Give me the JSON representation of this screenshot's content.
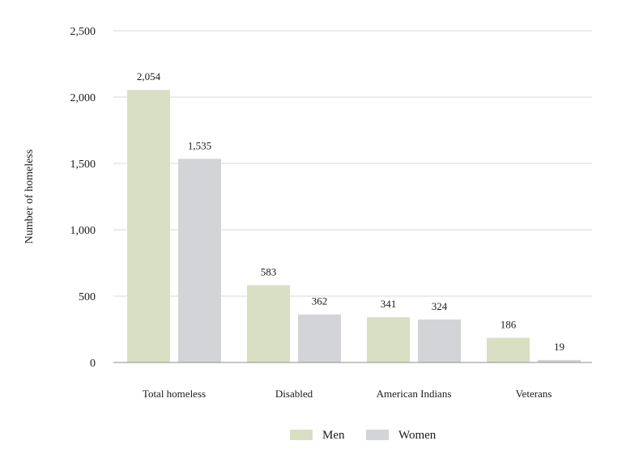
{
  "chart_data": {
    "type": "bar",
    "title": "",
    "xlabel": "",
    "ylabel": "Number of homeless",
    "categories": [
      "Total homeless",
      "Disabled",
      "American Indians",
      "Veterans"
    ],
    "series": [
      {
        "name": "Men",
        "color": "#d9dfc3",
        "values": [
          2054,
          583,
          341,
          186
        ]
      },
      {
        "name": "Women",
        "color": "#d3d4d7",
        "values": [
          1535,
          362,
          324,
          19
        ]
      }
    ],
    "data_labels": [
      [
        "2,054",
        "583",
        "341",
        "186"
      ],
      [
        "1,535",
        "362",
        "324",
        "19"
      ]
    ],
    "ylim": [
      0,
      2500
    ],
    "yticks": [
      0,
      500,
      1000,
      1500,
      2000,
      2500
    ],
    "ytick_labels": [
      "0",
      "500",
      "1,000",
      "1,500",
      "2,000",
      "2,500"
    ],
    "grid": true,
    "legend_position": "bottom-center"
  }
}
